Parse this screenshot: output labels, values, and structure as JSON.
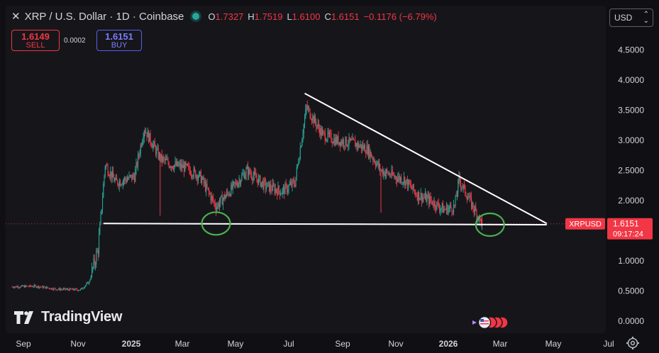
{
  "header": {
    "symbol_title": "XRP / U.S. Dollar · 1D · Coinbase",
    "ohlc": [
      {
        "k": "O",
        "v": "1.7327"
      },
      {
        "k": "H",
        "v": "1.7519"
      },
      {
        "k": "L",
        "v": "1.6100"
      },
      {
        "k": "C",
        "v": "1.6151"
      },
      {
        "k": "",
        "v": "−0.1176 (−6.79%)"
      }
    ]
  },
  "trade": {
    "sell_price": "1.6149",
    "sell_label": "SELL",
    "buy_price": "1.6151",
    "buy_label": "BUY",
    "spread": "0.0002"
  },
  "currency_select": "USD",
  "price_tag": {
    "symbol": "XRPUSD",
    "price": "1.6151",
    "countdown": "09:17:24"
  },
  "logo_text": "TradingView",
  "colors": {
    "up": "#26a69a",
    "down": "#f23645",
    "tag": "#f23645",
    "trendline": "#ffffff",
    "circle": "#4caf50",
    "buy_outline": "#5b5bf0"
  },
  "chart_data": {
    "type": "line",
    "title": "XRP / U.S. Dollar · 1D · Coinbase",
    "xlabel": "",
    "ylabel": "",
    "x_ticks": [
      "Sep",
      "Nov",
      "2025",
      "Mar",
      "May",
      "Jul",
      "Sep",
      "Nov",
      "2026",
      "Mar",
      "May",
      "Jul"
    ],
    "y_ticks": [
      "0.0000",
      "0.5000",
      "1.0000",
      "1.5000",
      "2.0000",
      "2.5000",
      "3.0000",
      "3.5000",
      "4.0000",
      "4.5000"
    ],
    "ylim": [
      0.0,
      4.75
    ],
    "grid": false,
    "series": [
      {
        "name": "XRPUSD",
        "x": [
          "2024-08-20",
          "2024-09-15",
          "2024-10-10",
          "2024-11-05",
          "2024-11-15",
          "2024-11-25",
          "2024-12-03",
          "2024-12-15",
          "2025-01-05",
          "2025-01-16",
          "2025-02-03",
          "2025-02-15",
          "2025-03-03",
          "2025-03-20",
          "2025-04-07",
          "2025-04-25",
          "2025-05-12",
          "2025-06-01",
          "2025-06-20",
          "2025-07-05",
          "2025-07-18",
          "2025-08-05",
          "2025-08-20",
          "2025-09-10",
          "2025-09-25",
          "2025-10-10",
          "2025-10-25",
          "2025-11-05",
          "2025-11-20",
          "2025-12-05",
          "2025-12-20",
          "2026-01-01",
          "2026-01-06",
          "2026-01-20",
          "2026-02-01"
        ],
        "values": [
          0.57,
          0.58,
          0.53,
          0.52,
          0.65,
          1.2,
          2.6,
          2.3,
          2.4,
          3.2,
          2.7,
          2.6,
          2.55,
          2.4,
          1.9,
          2.2,
          2.5,
          2.25,
          2.15,
          2.3,
          3.55,
          3.1,
          3.0,
          2.95,
          2.85,
          2.5,
          2.4,
          2.35,
          2.1,
          2.0,
          1.85,
          1.9,
          2.35,
          1.95,
          1.6151
        ]
      }
    ],
    "annotations": [
      {
        "type": "trendline",
        "from": [
          "2025-07-16",
          3.78
        ],
        "to": [
          "2026-04-15",
          1.62
        ]
      },
      {
        "type": "support_line",
        "from": [
          "2024-12-01",
          1.62
        ],
        "to": [
          "2026-04-15",
          1.6
        ]
      },
      {
        "type": "circle",
        "at": [
          "2025-04-07",
          1.62
        ]
      },
      {
        "type": "circle",
        "at": [
          "2026-02-10",
          1.6
        ]
      }
    ]
  }
}
